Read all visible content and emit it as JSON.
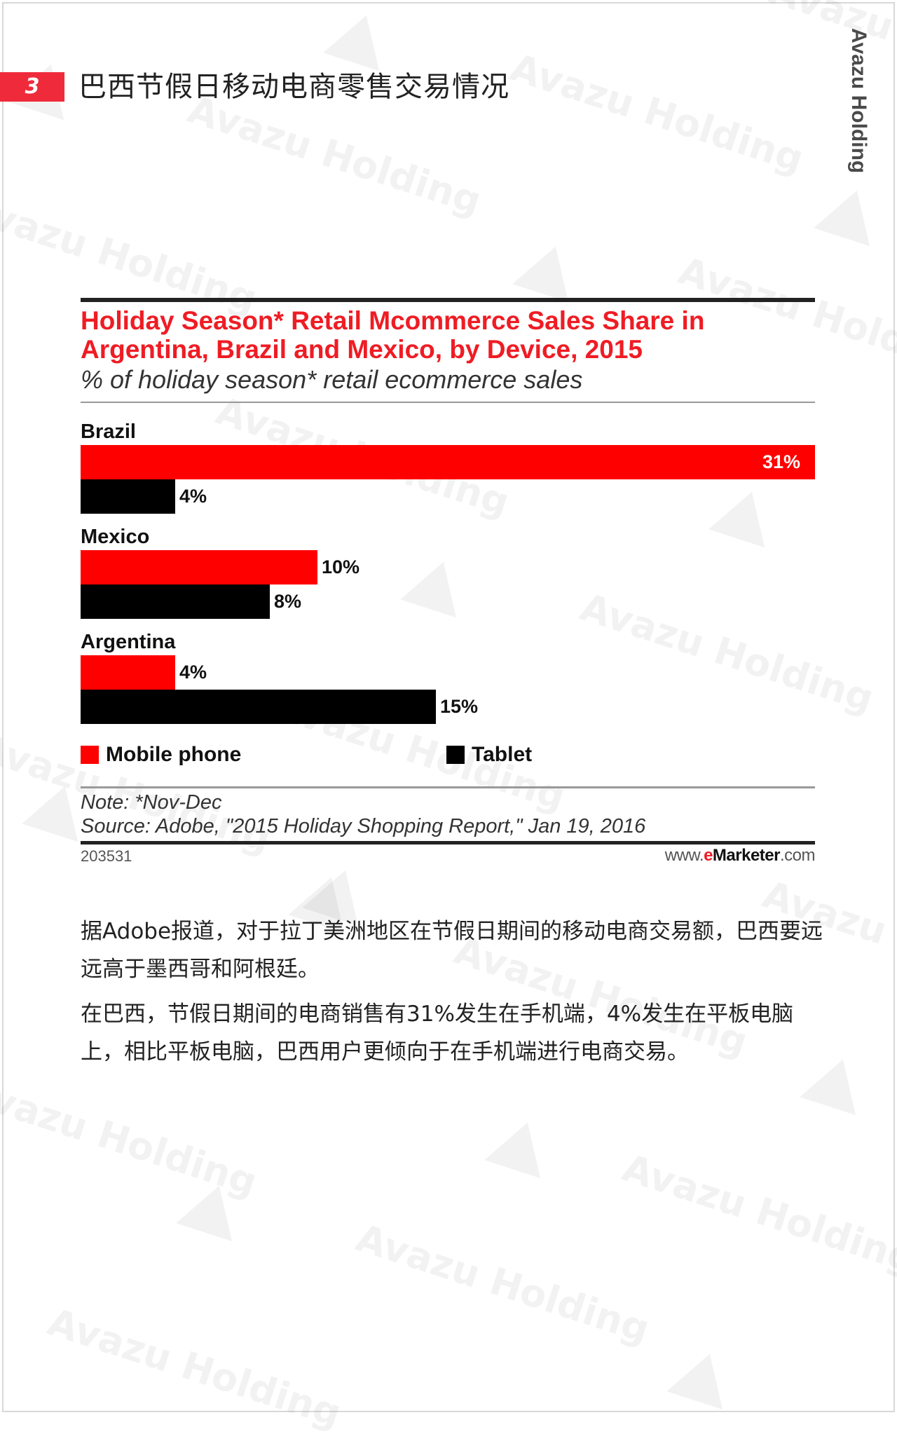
{
  "header": {
    "page_number": "3",
    "title": "巴西节假日移动电商零售交易情况",
    "brand": "Avazu Holding"
  },
  "watermark": "Avazu Holding",
  "chart_data": {
    "type": "bar",
    "orientation": "horizontal",
    "title": "Holiday Season* Retail Mcommerce Sales Share in Argentina, Brazil and Mexico, by Device, 2015",
    "title_lines": [
      "Holiday Season* Retail Mcommerce Sales Share in",
      "Argentina, Brazil and Mexico, by Device, 2015"
    ],
    "subtitle": "% of holiday season* retail ecommerce sales",
    "categories": [
      "Brazil",
      "Mexico",
      "Argentina"
    ],
    "series": [
      {
        "name": "Mobile phone",
        "values": [
          31,
          10,
          4
        ],
        "labels": [
          "31%",
          "10%",
          "4%"
        ],
        "color": "#ff0000"
      },
      {
        "name": "Tablet",
        "values": [
          4,
          8,
          15
        ],
        "labels": [
          "4%",
          "8%",
          "15%"
        ],
        "color": "#000000"
      }
    ],
    "xlim": [
      0,
      31
    ],
    "grid": false,
    "legend_position": "bottom",
    "note": "Note: *Nov-Dec",
    "source": "Source: Adobe, \"2015 Holiday Shopping Report,\" Jan 19, 2016",
    "chart_id": "203531",
    "source_url": {
      "prefix": "www.",
      "brand_e": "e",
      "brand_rest": "Marketer",
      "suffix": ".com"
    }
  },
  "body": {
    "paragraphs": [
      "据Adobe报道，对于拉丁美洲地区在节假日期间的移动电商交易额，巴西要远远高于墨西哥和阿根廷。",
      "在巴西，节假日期间的电商销售有31%发生在手机端，4%发生在平板电脑上，相比平板电脑，巴西用户更倾向于在手机端进行电商交易。"
    ]
  }
}
